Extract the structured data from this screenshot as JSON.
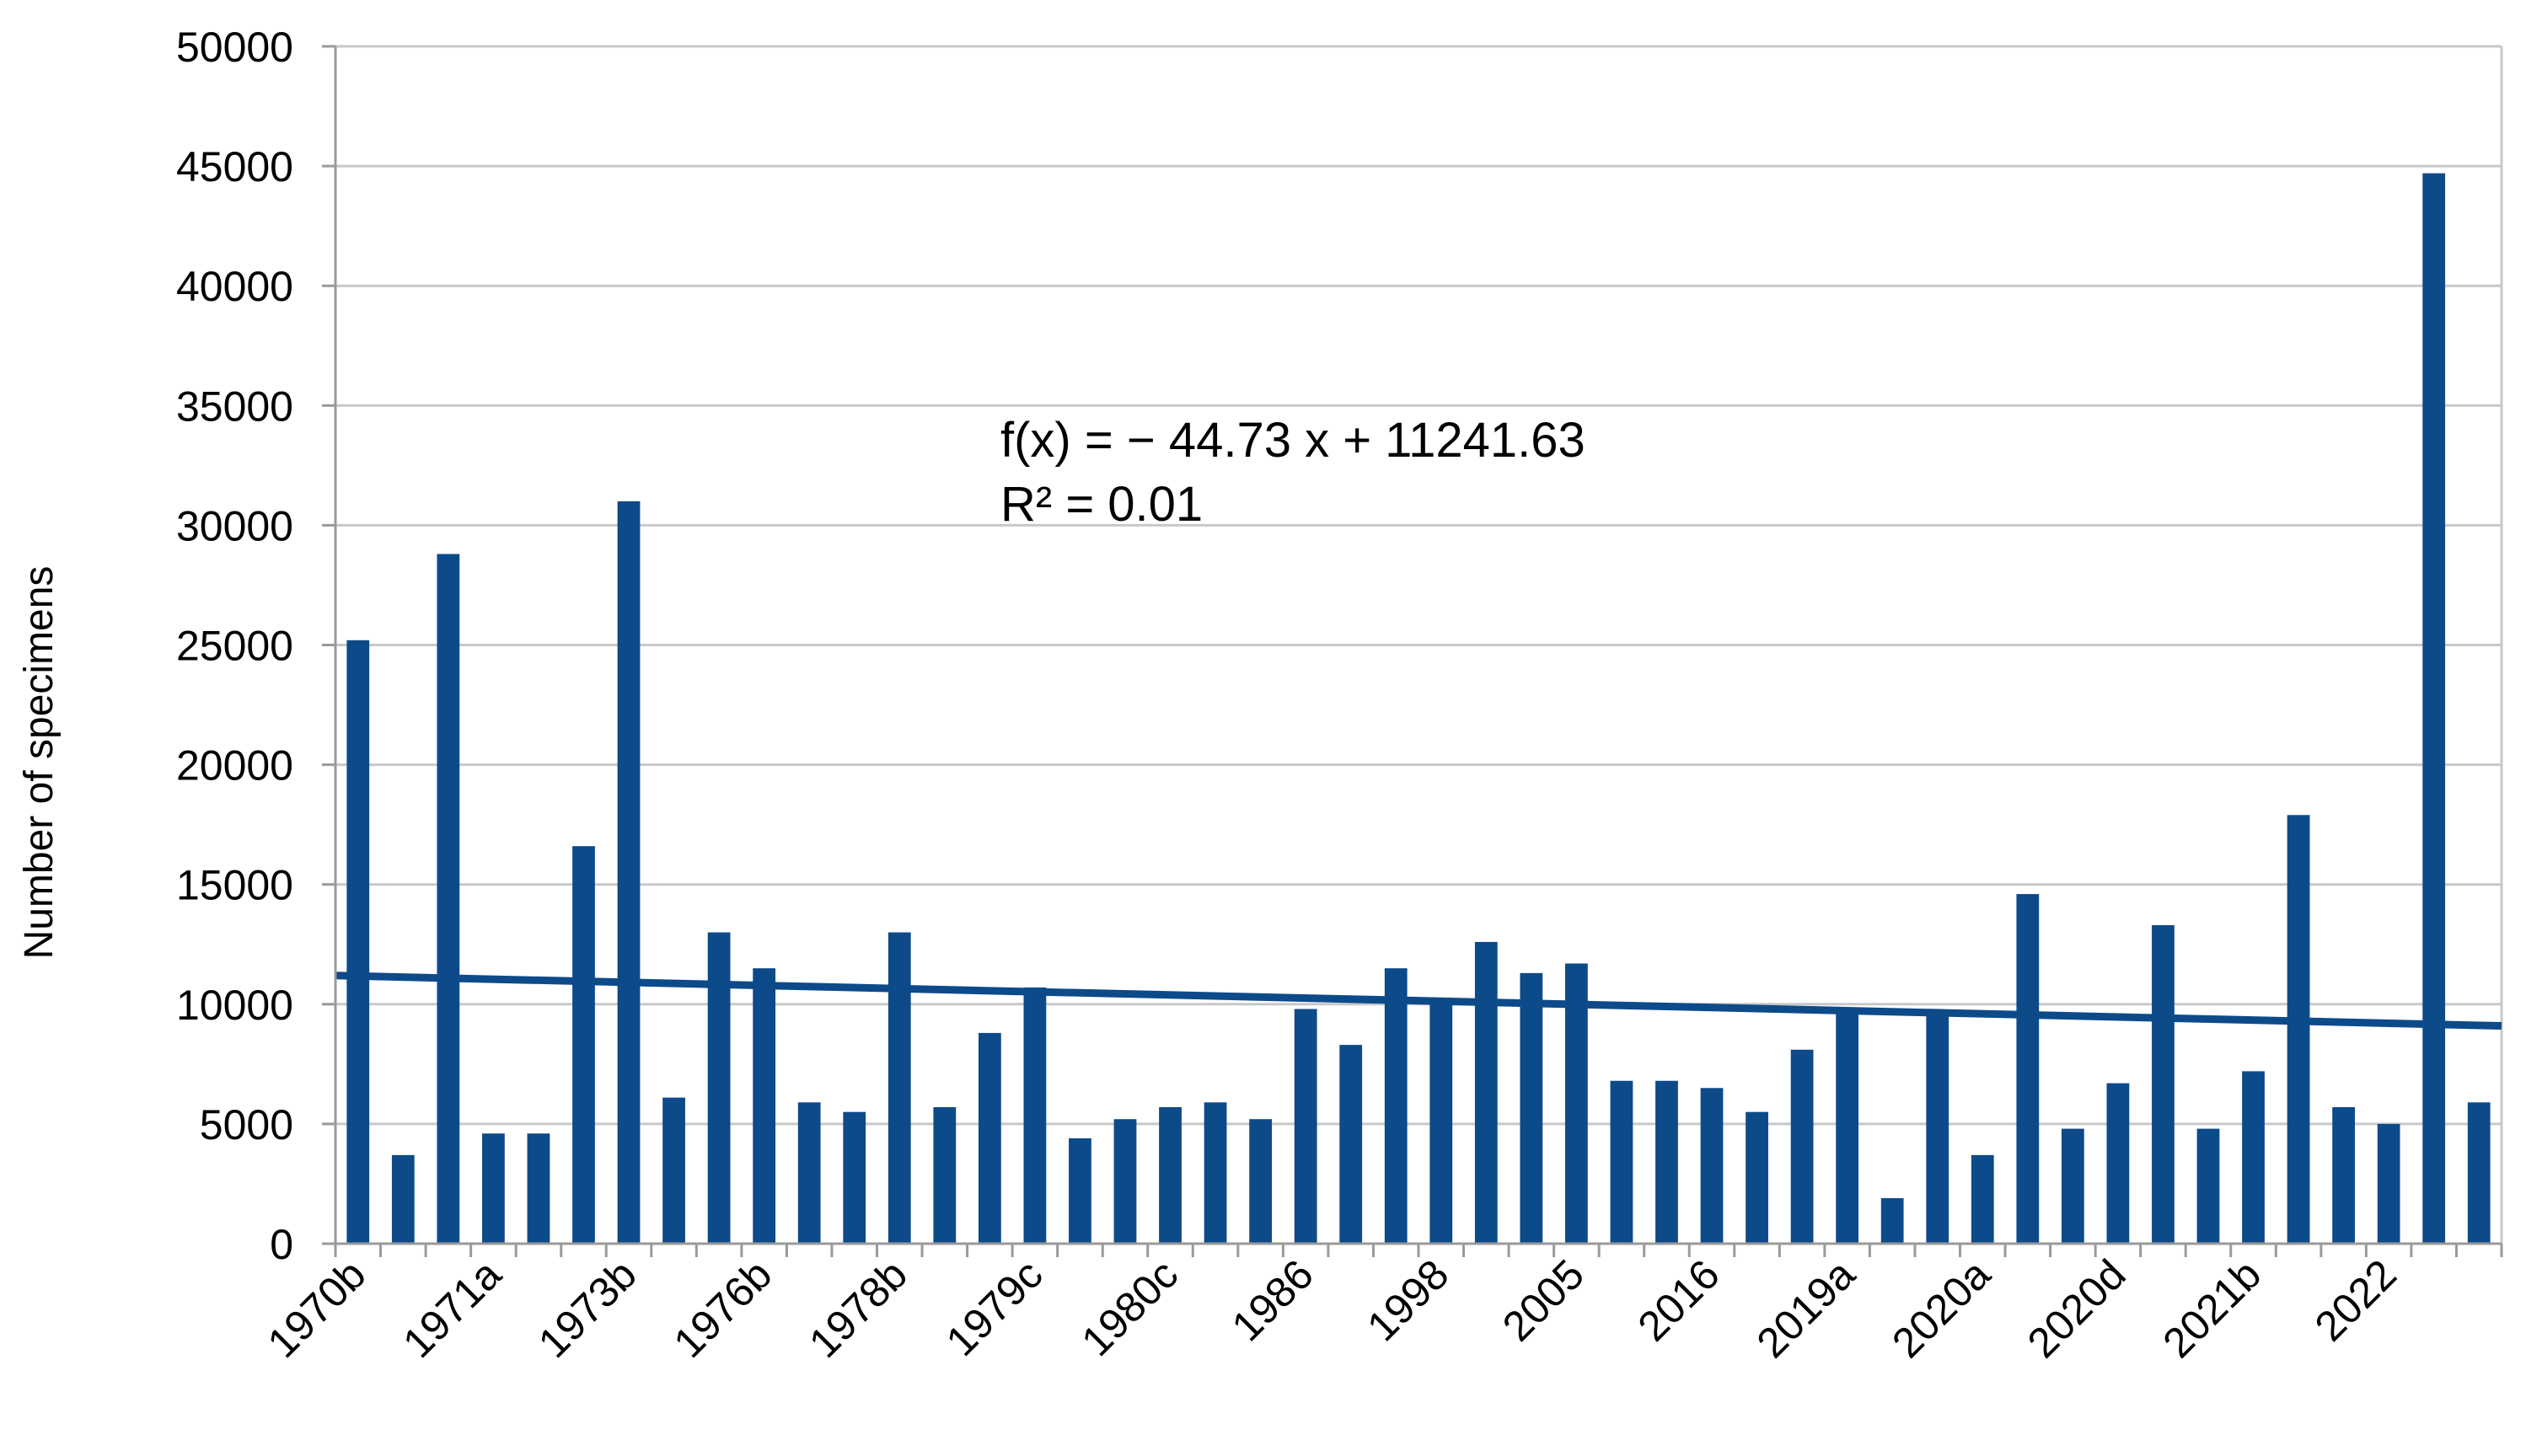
{
  "chart_data": {
    "type": "bar",
    "title": "",
    "xlabel": "",
    "ylabel": "Number of specimens",
    "ylim": [
      0,
      50000
    ],
    "yticks": [
      0,
      5000,
      10000,
      15000,
      20000,
      25000,
      30000,
      35000,
      40000,
      45000,
      50000
    ],
    "grid": true,
    "bar_color": "#0d4a8a",
    "x_tick_labels": [
      "1970b",
      "1971a",
      "1973b",
      "1976b",
      "1978b",
      "1979c",
      "1980c",
      "1986",
      "1998",
      "2005",
      "2016",
      "2019a",
      "2020a",
      "2020d",
      "2021b",
      "2022"
    ],
    "values": [
      25200,
      3700,
      28800,
      4600,
      4600,
      16600,
      31000,
      6100,
      13000,
      11500,
      5900,
      5500,
      13000,
      5700,
      8800,
      10700,
      4400,
      5200,
      5700,
      5900,
      5200,
      9800,
      8300,
      11500,
      10100,
      12600,
      11300,
      11700,
      6800,
      6800,
      6500,
      5500,
      8100,
      9700,
      1900,
      9600,
      3700,
      14600,
      4800,
      6700,
      13300,
      4800,
      7200,
      17900,
      5700,
      5000,
      44700,
      5900
    ],
    "trendline": {
      "type": "linear",
      "slope": -44.73,
      "intercept": 11241.63,
      "color": "#0d4a8a"
    },
    "annotations": {
      "equation": "f(x) = − 44.73 x + 11241.63",
      "r_squared": "R² = 0.01"
    }
  }
}
